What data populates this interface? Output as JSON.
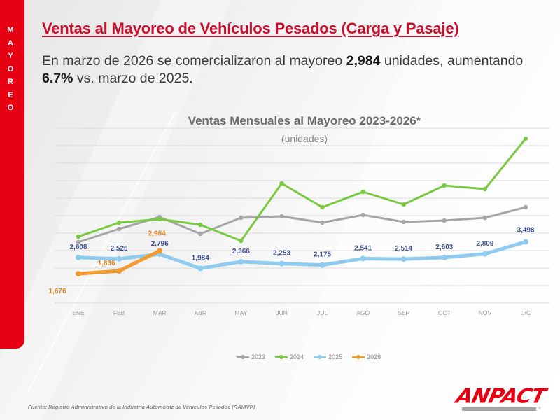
{
  "sidebar": {
    "label": "MAYOREO",
    "letters": [
      "M",
      "A",
      "Y",
      "O",
      "R",
      "E",
      "O"
    ]
  },
  "header": {
    "title": "Ventas al Mayoreo de Vehículos Pesados (Carga y Pasaje)",
    "summary_part1": "En marzo de 2026 se comercializaron al mayoreo ",
    "summary_units": "2,984",
    "summary_part2": " unidades, aumentando ",
    "summary_pct": "6.7%",
    "summary_part3": " vs. marzo de 2025."
  },
  "chart_data": {
    "type": "line",
    "title": "Ventas Mensuales al Mayoreo 2023-2026*",
    "subtitle": "(unidades)",
    "xlabel": "",
    "ylabel": "",
    "ylim": [
      0,
      10000
    ],
    "grid": true,
    "y_tick_step": 1000,
    "y_ticks_visible": false,
    "legend_position": "bottom",
    "categories": [
      "ENE",
      "FEB",
      "MAR",
      "ABR",
      "MAY",
      "JUN",
      "JUL",
      "AGO",
      "SEP",
      "OCT",
      "NOV",
      "DIC"
    ],
    "series": [
      {
        "name": "2023",
        "color": "#a6a6a6",
        "labeled": false,
        "values": [
          3480,
          4240,
          4920,
          3960,
          4880,
          4960,
          4600,
          5040,
          4640,
          4720,
          4880,
          5480
        ]
      },
      {
        "name": "2024",
        "color": "#7ac943",
        "labeled": false,
        "values": [
          3800,
          4600,
          4800,
          4480,
          3560,
          6840,
          5480,
          6360,
          5640,
          6720,
          6520,
          9400
        ]
      },
      {
        "name": "2025",
        "color": "#8fcbef",
        "labeled": true,
        "label_color": "#3d4f8f",
        "values": [
          2608,
          2526,
          2796,
          1984,
          2366,
          2253,
          2175,
          2541,
          2514,
          2603,
          2809,
          3498
        ],
        "labels": [
          "2,608",
          "2,526",
          "2,796",
          "1,984",
          "2,366",
          "2,253",
          "2,175",
          "2,541",
          "2,514",
          "2,603",
          "2,809",
          "3,498"
        ]
      },
      {
        "name": "2026",
        "color": "#f39a2e",
        "labeled": true,
        "label_color": "#e0892a",
        "values": [
          1676,
          1836,
          2984
        ],
        "labels": [
          "1,676",
          "1,836",
          "2,984"
        ]
      }
    ]
  },
  "footer": {
    "source": "Fuente: Registro Administrativo de la Industria Automotriz de Vehículos Pesados (RAIAVP)"
  },
  "logo": {
    "text": "ANPACT",
    "reg": "®"
  }
}
